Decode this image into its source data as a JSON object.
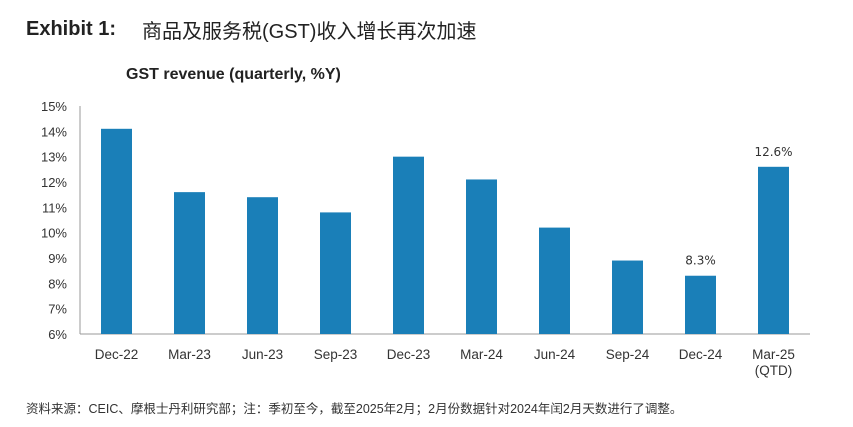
{
  "exhibit": {
    "label": "Exhibit 1:",
    "title": "商品及服务税(GST)收入增长再次加速"
  },
  "chart_data": {
    "type": "bar",
    "title": "GST revenue (quarterly, %Y)",
    "xlabel": "",
    "ylabel": "",
    "categories": [
      "Dec-22",
      "Mar-23",
      "Jun-23",
      "Sep-23",
      "Dec-23",
      "Mar-24",
      "Jun-24",
      "Sep-24",
      "Dec-24",
      "Mar-25\n(QTD)"
    ],
    "values": [
      14.1,
      11.6,
      11.4,
      10.8,
      13.0,
      12.1,
      10.2,
      8.9,
      8.3,
      12.6
    ],
    "data_labels": {
      "8": "8.3%",
      "9": "12.6%"
    },
    "ylim": [
      6,
      15
    ],
    "yticks": [
      "6%",
      "7%",
      "8%",
      "9%",
      "10%",
      "11%",
      "12%",
      "13%",
      "14%",
      "15%"
    ],
    "grid": false,
    "bar_color": "#1a7fb8"
  },
  "footnote": "资料来源：CEIC、摩根士丹利研究部；注：季初至今，截至2025年2月；2月份数据针对2024年闰2月天数进行了调整。"
}
